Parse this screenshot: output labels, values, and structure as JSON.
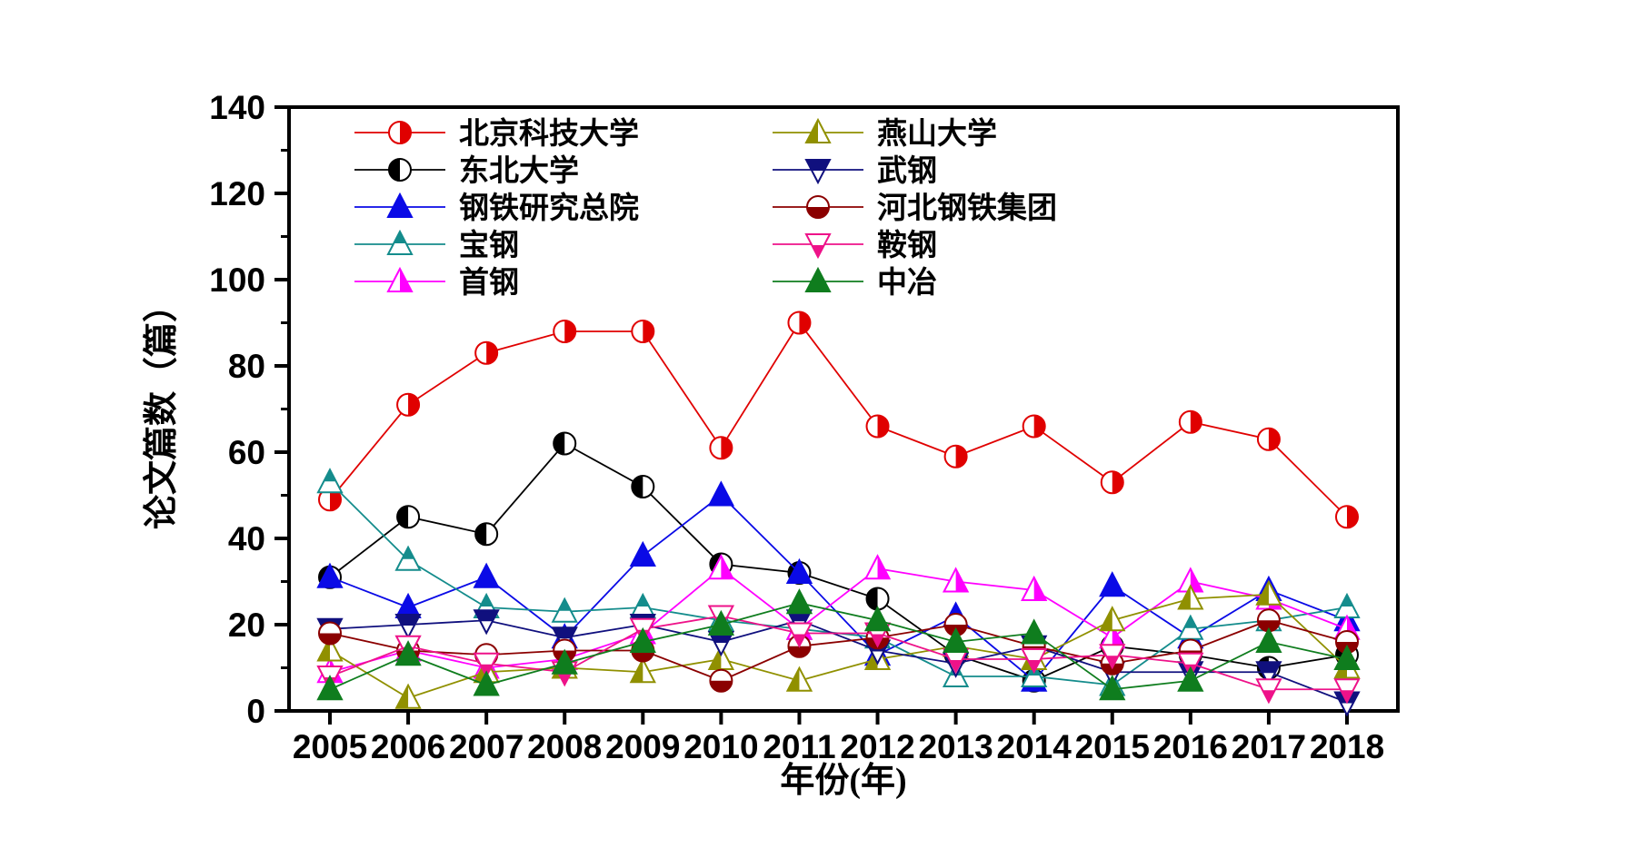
{
  "chart_data": {
    "type": "line",
    "title": "",
    "xlabel": "年份(年)",
    "ylabel": "论文篇数（篇）",
    "legend_position": "top-left-inside",
    "grid": false,
    "ylim": [
      0,
      140
    ],
    "ytick_step": 20,
    "yticks": [
      0,
      20,
      40,
      60,
      80,
      100,
      120,
      140
    ],
    "x": [
      2005,
      2006,
      2007,
      2008,
      2009,
      2010,
      2011,
      2012,
      2013,
      2014,
      2015,
      2016,
      2017,
      2018
    ],
    "series": [
      {
        "name": "北京科技大学",
        "color": "#e00000",
        "marker": "circle-right-half",
        "values": [
          49,
          71,
          83,
          88,
          88,
          61,
          90,
          66,
          59,
          66,
          53,
          67,
          63,
          45
        ]
      },
      {
        "name": "东北大学",
        "color": "#000000",
        "marker": "circle-left-half",
        "values": [
          31,
          45,
          41,
          62,
          52,
          34,
          32,
          26,
          13,
          7,
          15,
          13,
          10,
          13
        ]
      },
      {
        "name": "钢铁研究总院",
        "color": "#0a0ae6",
        "marker": "triangle-up-solid",
        "values": [
          31,
          24,
          31,
          17,
          36,
          50,
          32,
          13,
          22,
          7,
          29,
          17,
          28,
          21
        ]
      },
      {
        "name": "宝钢",
        "color": "#148c8c",
        "marker": "triangle-up-top-half",
        "values": [
          53,
          35,
          24,
          23,
          24,
          21,
          19,
          17,
          8,
          8,
          6,
          19,
          21,
          24
        ]
      },
      {
        "name": "首钢",
        "color": "#ff00ff",
        "marker": "triangle-up-right-half",
        "values": [
          9,
          14,
          10,
          12,
          18,
          33,
          19,
          33,
          30,
          28,
          17,
          30,
          26,
          19
        ]
      },
      {
        "name": "燕山大学",
        "color": "#909000",
        "marker": "triangle-up-left-half",
        "values": [
          14,
          3,
          9,
          10,
          9,
          12,
          7,
          12,
          15,
          12,
          21,
          26,
          27,
          10
        ]
      },
      {
        "name": "武钢",
        "color": "#10107e",
        "marker": "triangle-down-top-half",
        "values": [
          19,
          20,
          21,
          17,
          20,
          16,
          21,
          14,
          11,
          15,
          9,
          9,
          9,
          2
        ]
      },
      {
        "name": "河北钢铁集团",
        "color": "#8b0000",
        "marker": "circle-bottom-half",
        "values": [
          18,
          14,
          13,
          14,
          14,
          7,
          15,
          17,
          20,
          15,
          11,
          14,
          21,
          16
        ]
      },
      {
        "name": "鞍钢",
        "color": "#ee1289",
        "marker": "triangle-down-bottom-half",
        "values": [
          8,
          15,
          11,
          9,
          19,
          22,
          18,
          18,
          12,
          12,
          13,
          11,
          5,
          5
        ]
      },
      {
        "name": "中冶",
        "color": "#0f7d1e",
        "marker": "triangle-up-solid",
        "values": [
          5,
          13,
          6,
          11,
          16,
          20,
          25,
          21,
          16,
          18,
          5,
          7,
          16,
          12
        ]
      }
    ],
    "legend_columns": [
      [
        0,
        1,
        2,
        3,
        4
      ],
      [
        5,
        6,
        7,
        8,
        9
      ]
    ]
  }
}
